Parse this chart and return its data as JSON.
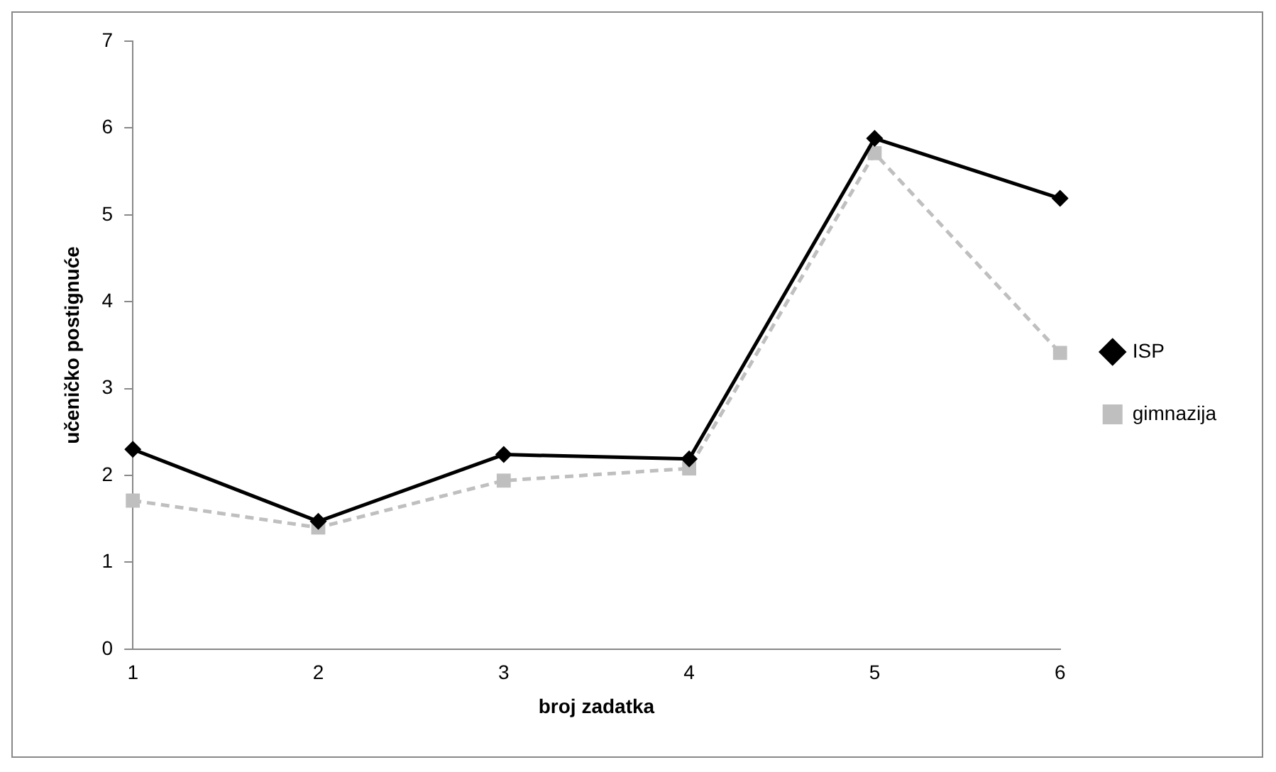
{
  "chart_data": {
    "type": "line",
    "xlabel": "broj zadatka",
    "ylabel": "učeničko postignuće",
    "categories": [
      "1",
      "2",
      "3",
      "4",
      "5",
      "6"
    ],
    "series": [
      {
        "name": "ISP",
        "color": "#000000",
        "values": [
          2.3,
          1.47,
          2.24,
          2.19,
          5.88,
          5.19
        ],
        "marker": "diamond",
        "line_style": "solid"
      },
      {
        "name": "gimnazija",
        "color": "#bfbfbf",
        "values": [
          1.71,
          1.4,
          1.94,
          2.08,
          5.71,
          3.41
        ],
        "marker": "square",
        "line_style": "dashed"
      }
    ],
    "ylim": [
      0,
      7
    ],
    "yticks": [
      0,
      1,
      2,
      3,
      4,
      5,
      6,
      7
    ],
    "grid": false,
    "legend": "right"
  }
}
